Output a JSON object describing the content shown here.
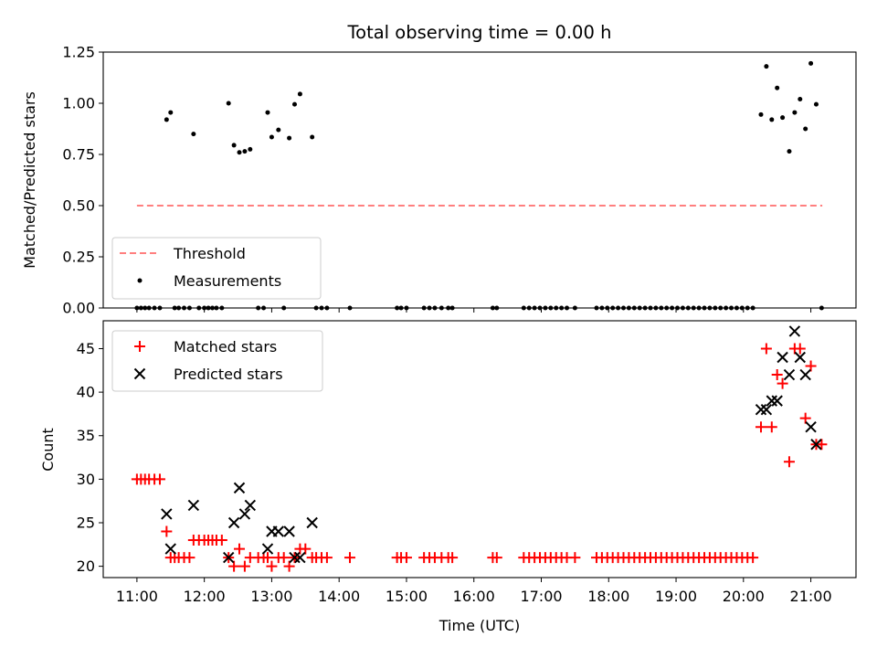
{
  "chart_data": [
    {
      "type": "scatter",
      "title": "Total observing time = 0.00 h",
      "xlabel": "",
      "ylabel": "Matched/Predicted stars",
      "xlim": [
        10.5,
        21.67
      ],
      "ylim": [
        0,
        1.25
      ],
      "yticks": [
        0.0,
        0.25,
        0.5,
        0.75,
        1.0,
        1.25
      ],
      "ytick_labels": [
        "0.00",
        "0.25",
        "0.50",
        "0.75",
        "1.00",
        "1.25"
      ],
      "legend": {
        "placement": "lower-left",
        "entries": [
          "Threshold",
          "Measurements"
        ]
      },
      "threshold": {
        "name": "Threshold",
        "y": 0.5,
        "x": [
          11.0,
          21.17
        ],
        "color": "#ff7f7f",
        "style": "dashed"
      },
      "series": [
        {
          "name": "Measurements",
          "color": "#000000",
          "marker": "dot",
          "points": [
            [
              11.44,
              0.92
            ],
            [
              11.5,
              0.955
            ],
            [
              11.84,
              0.85
            ],
            [
              12.36,
              1.0
            ],
            [
              12.44,
              0.795
            ],
            [
              12.52,
              0.76
            ],
            [
              12.6,
              0.765
            ],
            [
              12.68,
              0.775
            ],
            [
              12.94,
              0.955
            ],
            [
              13.0,
              0.835
            ],
            [
              13.1,
              0.87
            ],
            [
              13.26,
              0.83
            ],
            [
              13.34,
              0.995
            ],
            [
              13.42,
              1.045
            ],
            [
              13.6,
              0.835
            ],
            [
              20.26,
              0.945
            ],
            [
              20.34,
              1.18
            ],
            [
              20.42,
              0.92
            ],
            [
              20.5,
              1.075
            ],
            [
              20.58,
              0.93
            ],
            [
              20.68,
              0.765
            ],
            [
              20.76,
              0.955
            ],
            [
              20.84,
              1.02
            ],
            [
              20.92,
              0.875
            ],
            [
              21.0,
              1.195
            ],
            [
              21.08,
              0.995
            ],
            [
              11.0,
              0
            ],
            [
              11.06,
              0
            ],
            [
              11.12,
              0
            ],
            [
              11.18,
              0
            ],
            [
              11.26,
              0
            ],
            [
              11.34,
              0
            ],
            [
              11.56,
              0
            ],
            [
              11.62,
              0
            ],
            [
              11.7,
              0
            ],
            [
              11.78,
              0
            ],
            [
              11.92,
              0
            ],
            [
              12.0,
              0
            ],
            [
              12.06,
              0
            ],
            [
              12.12,
              0
            ],
            [
              12.18,
              0
            ],
            [
              12.26,
              0
            ],
            [
              12.8,
              0
            ],
            [
              12.88,
              0
            ],
            [
              13.18,
              0
            ],
            [
              13.66,
              0
            ],
            [
              13.74,
              0
            ],
            [
              13.82,
              0
            ],
            [
              14.16,
              0
            ],
            [
              14.86,
              0
            ],
            [
              14.92,
              0
            ],
            [
              15.0,
              0
            ],
            [
              15.26,
              0
            ],
            [
              15.34,
              0
            ],
            [
              15.42,
              0
            ],
            [
              15.52,
              0
            ],
            [
              15.62,
              0
            ],
            [
              15.68,
              0
            ],
            [
              16.28,
              0
            ],
            [
              16.34,
              0
            ],
            [
              16.74,
              0
            ],
            [
              16.82,
              0
            ],
            [
              16.9,
              0
            ],
            [
              16.98,
              0
            ],
            [
              17.06,
              0
            ],
            [
              17.14,
              0
            ],
            [
              17.22,
              0
            ],
            [
              17.3,
              0
            ],
            [
              17.38,
              0
            ],
            [
              17.5,
              0
            ],
            [
              17.82,
              0
            ],
            [
              17.9,
              0
            ],
            [
              17.98,
              0
            ],
            [
              18.06,
              0
            ],
            [
              18.14,
              0
            ],
            [
              18.22,
              0
            ],
            [
              18.3,
              0
            ],
            [
              18.38,
              0
            ],
            [
              18.46,
              0
            ],
            [
              18.54,
              0
            ],
            [
              18.62,
              0
            ],
            [
              18.7,
              0
            ],
            [
              18.78,
              0
            ],
            [
              18.86,
              0
            ],
            [
              18.94,
              0
            ],
            [
              19.02,
              0
            ],
            [
              19.1,
              0
            ],
            [
              19.18,
              0
            ],
            [
              19.26,
              0
            ],
            [
              19.34,
              0
            ],
            [
              19.42,
              0
            ],
            [
              19.5,
              0
            ],
            [
              19.58,
              0
            ],
            [
              19.66,
              0
            ],
            [
              19.74,
              0
            ],
            [
              19.82,
              0
            ],
            [
              19.9,
              0
            ],
            [
              19.98,
              0
            ],
            [
              20.06,
              0
            ],
            [
              20.14,
              0
            ],
            [
              21.16,
              0
            ]
          ]
        }
      ]
    },
    {
      "type": "scatter",
      "title": "",
      "xlabel": "Time (UTC)",
      "ylabel": "Count",
      "xlim": [
        10.5,
        21.67
      ],
      "ylim": [
        18.7,
        48.2
      ],
      "yticks": [
        20,
        25,
        30,
        35,
        40,
        45
      ],
      "ytick_labels": [
        "20",
        "25",
        "30",
        "35",
        "40",
        "45"
      ],
      "xticks": [
        11,
        12,
        13,
        14,
        15,
        16,
        17,
        18,
        19,
        20,
        21
      ],
      "xtick_labels": [
        "11:00",
        "12:00",
        "13:00",
        "14:00",
        "15:00",
        "16:00",
        "17:00",
        "18:00",
        "19:00",
        "20:00",
        "21:00"
      ],
      "legend": {
        "placement": "top-left",
        "entries": [
          "Matched stars",
          "Predicted stars"
        ]
      },
      "series": [
        {
          "name": "Matched stars",
          "color": "#ff0000",
          "marker": "plus",
          "points": [
            [
              11.0,
              30
            ],
            [
              11.06,
              30
            ],
            [
              11.12,
              30
            ],
            [
              11.18,
              30
            ],
            [
              11.26,
              30
            ],
            [
              11.34,
              30
            ],
            [
              11.44,
              24
            ],
            [
              11.5,
              21
            ],
            [
              11.56,
              21
            ],
            [
              11.62,
              21
            ],
            [
              11.7,
              21
            ],
            [
              11.78,
              21
            ],
            [
              11.84,
              23
            ],
            [
              11.92,
              23
            ],
            [
              12.0,
              23
            ],
            [
              12.06,
              23
            ],
            [
              12.12,
              23
            ],
            [
              12.18,
              23
            ],
            [
              12.26,
              23
            ],
            [
              12.36,
              21
            ],
            [
              12.44,
              20
            ],
            [
              12.52,
              22
            ],
            [
              12.6,
              20
            ],
            [
              12.68,
              21
            ],
            [
              12.8,
              21
            ],
            [
              12.88,
              21
            ],
            [
              12.94,
              21
            ],
            [
              13.0,
              20
            ],
            [
              13.1,
              21
            ],
            [
              13.18,
              21
            ],
            [
              13.26,
              20
            ],
            [
              13.34,
              21
            ],
            [
              13.42,
              22
            ],
            [
              13.5,
              22
            ],
            [
              13.6,
              21
            ],
            [
              13.66,
              21
            ],
            [
              13.74,
              21
            ],
            [
              13.82,
              21
            ],
            [
              14.16,
              21
            ],
            [
              14.86,
              21
            ],
            [
              14.92,
              21
            ],
            [
              15.0,
              21
            ],
            [
              15.26,
              21
            ],
            [
              15.34,
              21
            ],
            [
              15.42,
              21
            ],
            [
              15.52,
              21
            ],
            [
              15.62,
              21
            ],
            [
              15.68,
              21
            ],
            [
              16.28,
              21
            ],
            [
              16.34,
              21
            ],
            [
              16.74,
              21
            ],
            [
              16.82,
              21
            ],
            [
              16.9,
              21
            ],
            [
              16.98,
              21
            ],
            [
              17.06,
              21
            ],
            [
              17.14,
              21
            ],
            [
              17.22,
              21
            ],
            [
              17.3,
              21
            ],
            [
              17.38,
              21
            ],
            [
              17.5,
              21
            ],
            [
              17.82,
              21
            ],
            [
              17.9,
              21
            ],
            [
              17.98,
              21
            ],
            [
              18.06,
              21
            ],
            [
              18.14,
              21
            ],
            [
              18.22,
              21
            ],
            [
              18.3,
              21
            ],
            [
              18.38,
              21
            ],
            [
              18.46,
              21
            ],
            [
              18.54,
              21
            ],
            [
              18.62,
              21
            ],
            [
              18.7,
              21
            ],
            [
              18.78,
              21
            ],
            [
              18.86,
              21
            ],
            [
              18.94,
              21
            ],
            [
              19.02,
              21
            ],
            [
              19.1,
              21
            ],
            [
              19.18,
              21
            ],
            [
              19.26,
              21
            ],
            [
              19.34,
              21
            ],
            [
              19.42,
              21
            ],
            [
              19.5,
              21
            ],
            [
              19.58,
              21
            ],
            [
              19.66,
              21
            ],
            [
              19.74,
              21
            ],
            [
              19.82,
              21
            ],
            [
              19.9,
              21
            ],
            [
              19.98,
              21
            ],
            [
              20.06,
              21
            ],
            [
              20.14,
              21
            ],
            [
              20.26,
              36
            ],
            [
              20.34,
              45
            ],
            [
              20.42,
              36
            ],
            [
              20.5,
              42
            ],
            [
              20.58,
              41
            ],
            [
              20.68,
              32
            ],
            [
              20.76,
              45
            ],
            [
              20.84,
              45
            ],
            [
              20.92,
              37
            ],
            [
              21.0,
              43
            ],
            [
              21.08,
              34
            ],
            [
              21.16,
              34
            ]
          ]
        },
        {
          "name": "Predicted stars",
          "color": "#000000",
          "marker": "x",
          "points": [
            [
              11.44,
              26
            ],
            [
              11.5,
              22
            ],
            [
              11.84,
              27
            ],
            [
              12.36,
              21
            ],
            [
              12.44,
              25
            ],
            [
              12.52,
              29
            ],
            [
              12.6,
              26
            ],
            [
              12.68,
              27
            ],
            [
              12.94,
              22
            ],
            [
              13.0,
              24
            ],
            [
              13.1,
              24
            ],
            [
              13.26,
              24
            ],
            [
              13.34,
              21
            ],
            [
              13.42,
              21
            ],
            [
              13.6,
              25
            ],
            [
              20.26,
              38
            ],
            [
              20.34,
              38
            ],
            [
              20.42,
              39
            ],
            [
              20.5,
              39
            ],
            [
              20.58,
              44
            ],
            [
              20.68,
              42
            ],
            [
              20.76,
              47
            ],
            [
              20.84,
              44
            ],
            [
              20.92,
              42
            ],
            [
              21.0,
              36
            ],
            [
              21.08,
              34
            ]
          ]
        }
      ]
    }
  ]
}
